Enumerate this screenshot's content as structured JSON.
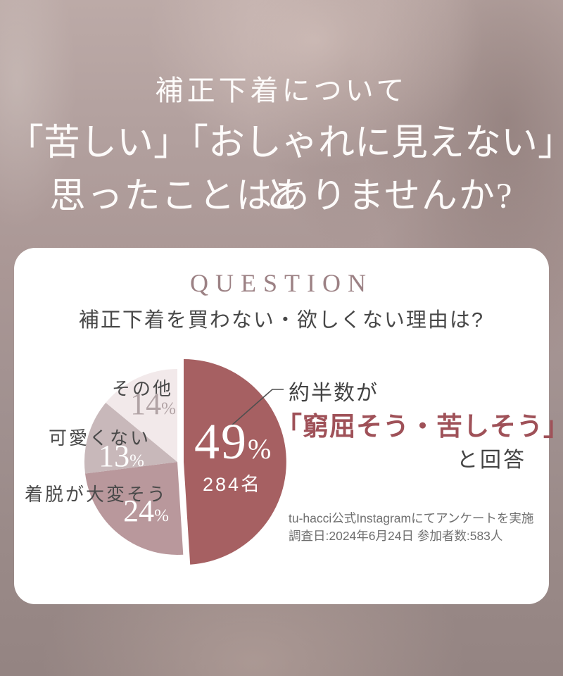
{
  "hero": {
    "line1": "補正下着について",
    "line2": "「苦しい」「おしゃれに見えない」と",
    "line3": "思ったことはありませんか?"
  },
  "card": {
    "eyebrow": "QUESTION",
    "title": "補正下着を買わない・欲しくない理由は?",
    "callout": {
      "lead": "約半数が",
      "highlight": "「窮屈そう・苦しそう」",
      "tail": "と回答"
    },
    "footnote": {
      "line1": "tu-hacci公式Instagramにてアンケートを実施",
      "line2": "調査日:2024年6月24日 参加者数:583人"
    }
  },
  "chart_data": {
    "type": "pie",
    "title": "補正下着を買わない・欲しくない理由は?",
    "unit": "%",
    "start_angle_deg": 0,
    "direction": "clockwise",
    "legend_position": "around-slices",
    "segments": [
      {
        "label": "窮屈そう・苦しそう",
        "pct": 49,
        "pct_display": "49",
        "count": "284名",
        "color": "#a66062",
        "exploded": true
      },
      {
        "label": "着脱が大変そう",
        "pct": 24,
        "pct_display": "24",
        "color": "#b9989c",
        "exploded": false
      },
      {
        "label": "可愛くない",
        "pct": 13,
        "pct_display": "13",
        "color": "#c8b8ba",
        "exploded": false
      },
      {
        "label": "その他",
        "pct": 14,
        "pct_display": "14",
        "color": "#f2e9ea",
        "exploded": false
      }
    ],
    "source_note": "tu-hacci公式Instagramにてアンケートを実施 調査日:2024年6月24日 参加者数:583人"
  }
}
